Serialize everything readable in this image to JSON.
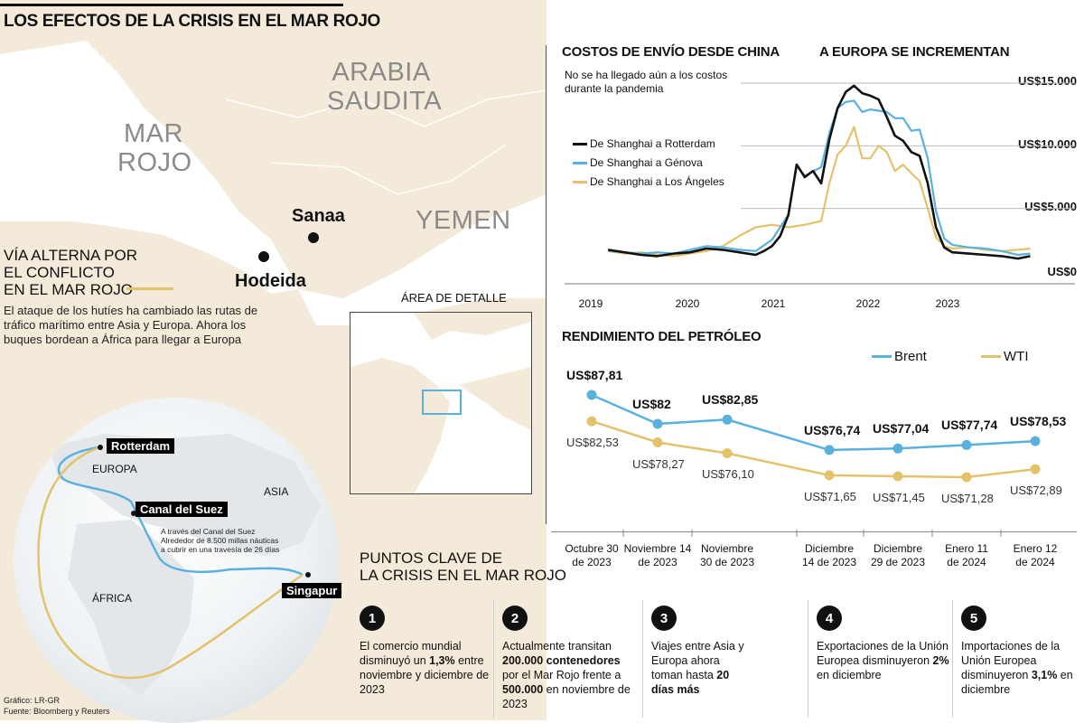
{
  "title": "LOS EFECTOS DE LA CRISIS EN EL MAR ROJO",
  "map": {
    "regions": {
      "arabia": "ARABIA\nSAUDITA",
      "mar_rojo": "MAR\nROJO",
      "yemen": "YEMEN"
    },
    "cities": {
      "sanaa": "Sanaa",
      "hodeida": "Hodeida"
    },
    "route_title": "VÍA ALTERNA POR\nEL CONFLICTO\nEN EL MAR ROJO",
    "route_desc": "El ataque de los hutíes ha cambiado las rutas de tráfico marítimo entre Asia y Europa. Ahora los buques bordean a África para llegar a Europa",
    "detail_label": "ÁREA DE DETALLE",
    "globe": {
      "rotterdam": "Rotterdam",
      "europa": "EUROPA",
      "asia": "ASIA",
      "africa": "ÁFRICA",
      "suez": "Canal del Suez",
      "singapur": "Singapur",
      "suez_note": "A través del Canal del Suez Alrededor de 8.500 millas náuticas a cubrir en una travesía de 26 días"
    },
    "source_1": "Gráfico: LR-GR",
    "source_2": "Fuente: Bloomberg y Reuters"
  },
  "colors": {
    "black": "#111111",
    "blue": "#5bb1de",
    "gold": "#e3c26b"
  },
  "shipping": {
    "title_1": "COSTOS DE ENVÍO DESDE CHINA",
    "title_2": "A EUROPA SE INCREMENTAN",
    "note": "No se ha llegado aún a los costos\ndurante la pandemia",
    "y_ticks": [
      "US$15.000",
      "US$10.000",
      "US$5.000",
      "US$0"
    ],
    "x_ticks": [
      "2019",
      "2020",
      "2021",
      "2022",
      "2023"
    ],
    "legend": [
      "De Shanghai a Rotterdam",
      "De Shanghai a Génova",
      "De Shanghai a Los Ángeles"
    ]
  },
  "oil": {
    "title": "RENDIMIENTO DEL PETRÓLEO",
    "legend_brent": "Brent",
    "legend_wti": "WTI",
    "dates": [
      "Octubre 30\nde 2023",
      "Noviembre 14\nde 2023",
      "Noviembre\n30 de 2023",
      "Diciembre\n14 de 2023",
      "Diciembre\n29 de 2023",
      "Enero 11\nde 2024",
      "Enero 12\nde 2024"
    ],
    "brent_labels": [
      "US$87,81",
      "US$82",
      "US$82,85",
      "US$76,74",
      "US$77,04",
      "US$77,74",
      "US$78,53"
    ],
    "wti_labels": [
      "US$82,53",
      "US$78,27",
      "US$76,10",
      "US$71,65",
      "US$71,45",
      "US$71,28",
      "US$72,89"
    ]
  },
  "chart_data": [
    {
      "type": "line",
      "title": "COSTOS DE ENVÍO DESDE CHINA A EUROPA SE INCREMENTAN",
      "x_unit": "year",
      "ylim": [
        0,
        15000
      ],
      "series": [
        {
          "name": "De Shanghai a Rotterdam",
          "x": [
            2018.8,
            2019.0,
            2019.2,
            2019.4,
            2019.6,
            2019.8,
            2020.0,
            2020.2,
            2020.4,
            2020.6,
            2020.7,
            2020.8,
            2020.9,
            2021.0,
            2021.1,
            2021.2,
            2021.3,
            2021.4,
            2021.5,
            2021.6,
            2021.7,
            2021.8,
            2021.9,
            2022.0,
            2022.1,
            2022.2,
            2022.3,
            2022.4,
            2022.5,
            2022.6,
            2022.7,
            2022.8,
            2022.9,
            2023.0,
            2023.2,
            2023.4,
            2023.6,
            2023.8,
            2023.95
          ],
          "values": [
            1700,
            1500,
            1300,
            1200,
            1400,
            1500,
            1800,
            1700,
            1500,
            1300,
            1600,
            2000,
            2800,
            4500,
            8500,
            7500,
            8000,
            7000,
            10500,
            13000,
            14300,
            14800,
            14200,
            14000,
            13700,
            12300,
            10800,
            10400,
            9500,
            9200,
            7000,
            3500,
            1900,
            1500,
            1400,
            1300,
            1200,
            1000,
            1200
          ]
        },
        {
          "name": "De Shanghai a Génova",
          "x": [
            2018.8,
            2019.0,
            2019.2,
            2019.4,
            2019.6,
            2019.8,
            2020.0,
            2020.2,
            2020.4,
            2020.6,
            2020.8,
            2021.0,
            2021.1,
            2021.2,
            2021.4,
            2021.5,
            2021.6,
            2021.7,
            2021.8,
            2021.9,
            2022.0,
            2022.1,
            2022.2,
            2022.3,
            2022.4,
            2022.5,
            2022.6,
            2022.7,
            2022.8,
            2022.9,
            2023.0,
            2023.2,
            2023.4,
            2023.6,
            2023.8,
            2023.95
          ],
          "values": [
            1600,
            1500,
            1400,
            1500,
            1400,
            1700,
            2000,
            1900,
            1700,
            1600,
            2500,
            4500,
            8400,
            7600,
            8300,
            11000,
            13000,
            13500,
            13600,
            12700,
            12900,
            12800,
            12700,
            12200,
            12200,
            11200,
            11300,
            9000,
            4800,
            2600,
            2100,
            1900,
            1800,
            1600,
            1300,
            1400
          ]
        },
        {
          "name": "De Shanghai a Los Ángeles",
          "x": [
            2018.8,
            2019.0,
            2019.2,
            2019.4,
            2019.6,
            2019.8,
            2020.0,
            2020.2,
            2020.4,
            2020.6,
            2020.8,
            2021.0,
            2021.2,
            2021.4,
            2021.5,
            2021.6,
            2021.7,
            2021.8,
            2021.9,
            2022.0,
            2022.1,
            2022.2,
            2022.3,
            2022.4,
            2022.5,
            2022.6,
            2022.7,
            2022.8,
            2022.9,
            2023.0,
            2023.2,
            2023.4,
            2023.6,
            2023.8,
            2023.95
          ],
          "values": [
            1600,
            1400,
            1500,
            1300,
            1200,
            1400,
            1600,
            2000,
            2800,
            3500,
            3700,
            3500,
            3700,
            4000,
            7000,
            9300,
            10000,
            11500,
            9000,
            9000,
            10000,
            9500,
            8000,
            8500,
            7800,
            7200,
            5000,
            2700,
            2000,
            1800,
            1900,
            1700,
            1600,
            1700,
            1800
          ]
        }
      ],
      "y_ticks": [
        "US$15.000",
        "US$10.000",
        "US$5.000",
        "US$0"
      ],
      "x_ticks": [
        "2019",
        "2020",
        "2021",
        "2022",
        "2023"
      ],
      "legend": "top-left"
    },
    {
      "type": "line",
      "title": "RENDIMIENTO DEL PETRÓLEO",
      "categories": [
        "Octubre 30 de 2023",
        "Noviembre 14 de 2023",
        "Noviembre 30 de 2023",
        "Diciembre 14 de 2023",
        "Diciembre 29 de 2023",
        "Enero 11 de 2024",
        "Enero 12 de 2024"
      ],
      "series": [
        {
          "name": "Brent",
          "values": [
            87.81,
            82,
            82.85,
            76.74,
            77.04,
            77.74,
            78.53
          ]
        },
        {
          "name": "WTI",
          "values": [
            82.53,
            78.27,
            76.1,
            71.65,
            71.45,
            71.28,
            72.89
          ]
        }
      ],
      "legend": "top-right"
    }
  ],
  "key_points": {
    "title": "PUNTOS CLAVE DE\nLA CRISIS EN EL MAR ROJO",
    "items": [
      {
        "num": "1",
        "pre": "El comercio mundial disminuyó un ",
        "bold": "1,3%",
        "post": " entre noviembre y diciembre de 2023"
      },
      {
        "num": "2",
        "pre": "Actualmente transitan ",
        "bold": "200.000 contenedores",
        "post": " por el Mar Rojo frente a ",
        "bold2": "500.000",
        "post2": " en noviembre de 2023"
      },
      {
        "num": "3",
        "pre": "Viajes entre Asia y Europa ahora toman hasta ",
        "bold": "20 días más",
        "post": ""
      },
      {
        "num": "4",
        "pre": "Exportaciones de la Unión Europea disminuyeron ",
        "bold": "2%",
        "post": " en diciembre"
      },
      {
        "num": "5",
        "pre": "Importaciones de la Unión Europea disminuyeron ",
        "bold": "3,1%",
        "post": " en diciembre"
      }
    ]
  }
}
